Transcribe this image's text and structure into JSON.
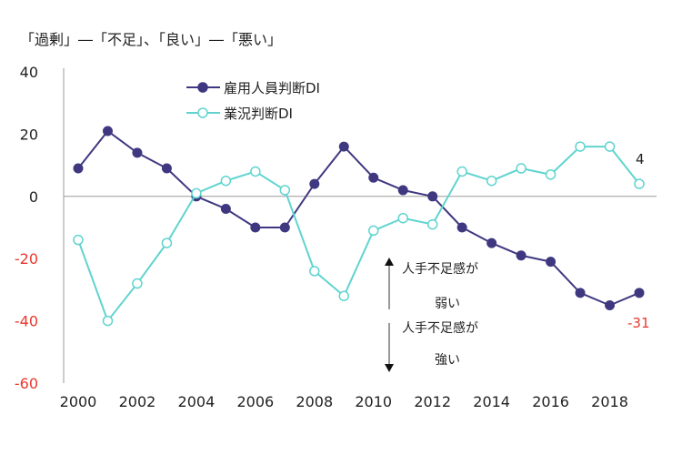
{
  "header": {
    "subtitle": "「過剰」―「不足」、「良い」―「悪い」"
  },
  "annotations": {
    "up_line1": "人手不足感が",
    "up_line2": "弱い",
    "down_line1": "人手不足感が",
    "down_line2": "強い",
    "employment_last_label": "-31",
    "business_last_label": "4"
  },
  "colors": {
    "employment": "#3f3880",
    "business": "#5fd4cf",
    "negative_tick": "#e8382e",
    "last_value_red": "#e8382e",
    "axis": "#9a9a9a",
    "text": "#222222"
  },
  "chart_data": {
    "type": "line",
    "x": [
      2000,
      2001,
      2002,
      2003,
      2004,
      2005,
      2006,
      2007,
      2008,
      2009,
      2010,
      2011,
      2012,
      2013,
      2014,
      2015,
      2016,
      2017,
      2018,
      2019
    ],
    "xticks": [
      "2000",
      "2002",
      "2004",
      "2006",
      "2008",
      "2010",
      "2012",
      "2014",
      "2016",
      "2018"
    ],
    "yticks": [
      "40",
      "20",
      "0",
      "-20",
      "-40",
      "-60"
    ],
    "ylim": [
      -60,
      40
    ],
    "legend_position": "top-center",
    "series": [
      {
        "name": "雇用人員判断DI",
        "color": "#3f3880",
        "marker": "filled-circle",
        "values": [
          9,
          21,
          14,
          9,
          0,
          -4,
          -10,
          -10,
          4,
          16,
          6,
          2,
          0,
          -10,
          -15,
          -19,
          -21,
          -31,
          -35,
          -31
        ]
      },
      {
        "name": "業況判断DI",
        "color": "#5fd4cf",
        "marker": "open-circle",
        "values": [
          -14,
          -40,
          -28,
          -15,
          1,
          5,
          8,
          2,
          -24,
          -32,
          -11,
          -7,
          -9,
          8,
          5,
          9,
          7,
          16,
          16,
          4
        ]
      }
    ]
  }
}
